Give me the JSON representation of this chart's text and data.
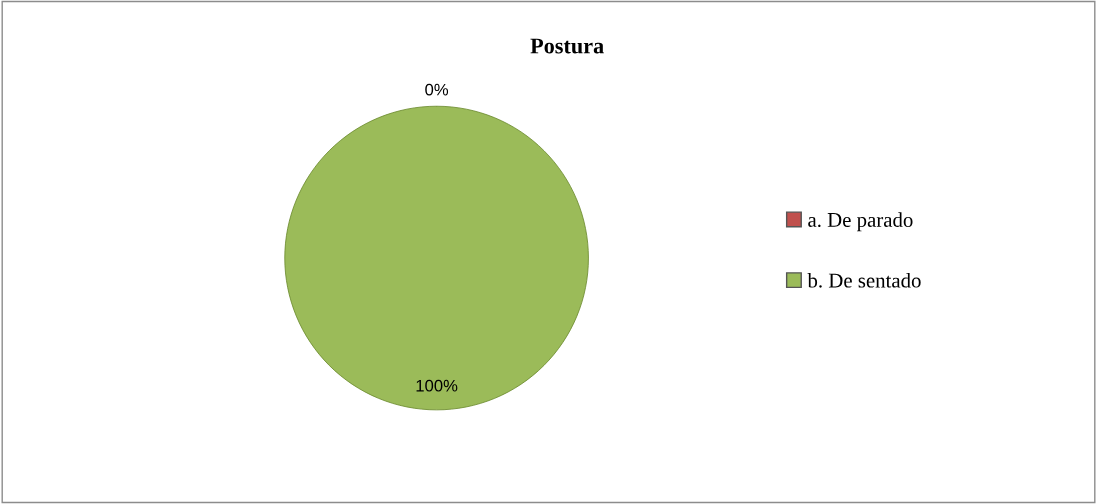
{
  "chart_data": {
    "type": "pie",
    "title": "Postura",
    "categories": [
      "a. De parado",
      "b. De sentado"
    ],
    "values": [
      0,
      100
    ],
    "colors": [
      "#c0504d",
      "#9bbb59"
    ],
    "value_labels": [
      "0%",
      "100%"
    ],
    "legend": "right"
  }
}
